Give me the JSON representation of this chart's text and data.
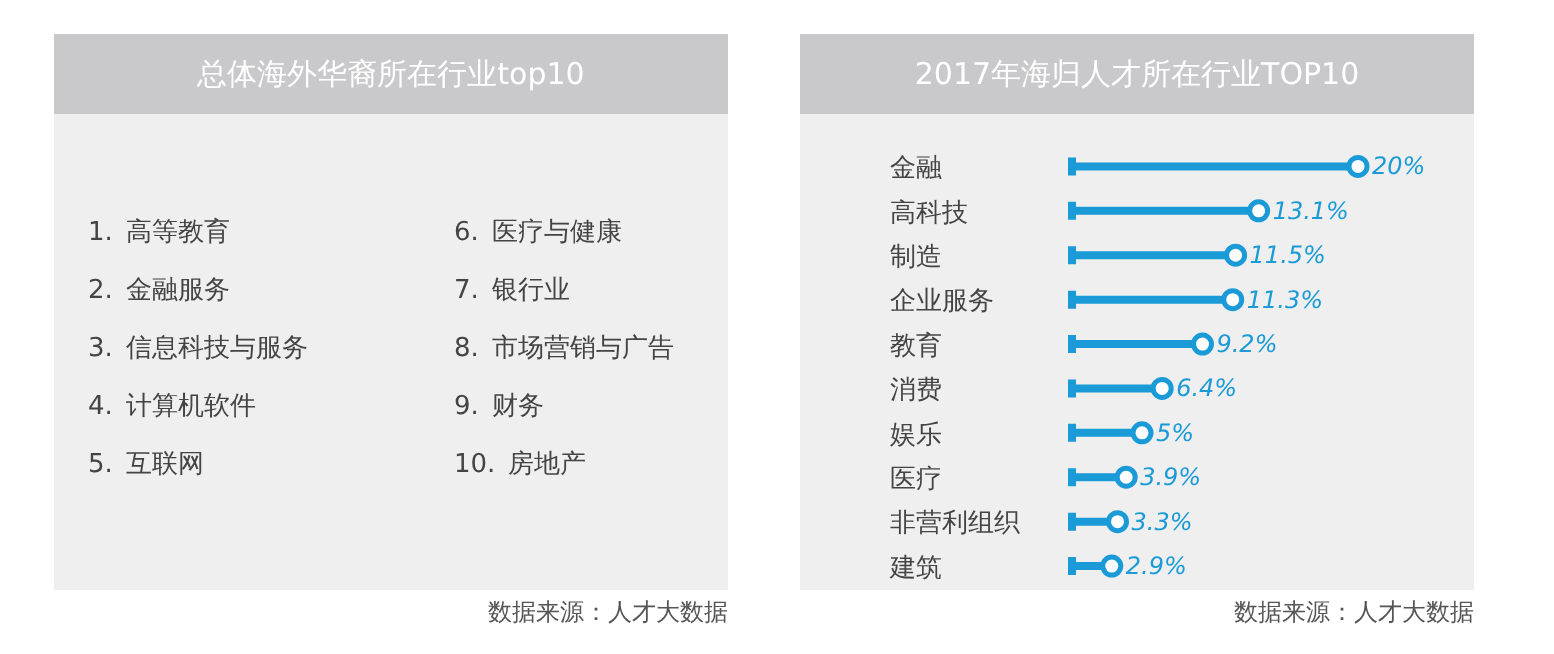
{
  "chart_data": [
    {
      "type": "other",
      "title": "总体海外华裔所在行业top10",
      "categories": [
        "1. 高等教育",
        "2. 金融服务",
        "3. 信息科技与服务",
        "4. 计算机软件",
        "5. 互联网",
        "6. 医疗与健康",
        "7. 银行业",
        "8. 市场营销与广告",
        "9. 财务",
        "10. 房地产"
      ],
      "annotations": [
        "数据来源：人才大数据"
      ]
    },
    {
      "type": "lollipop",
      "title": "2017年海归人才所在行业TOP10",
      "orientation": "horizontal",
      "color": "#1a9ad6",
      "categories": [
        "金融",
        "高科技",
        "制造",
        "企业服务",
        "教育",
        "消费",
        "娱乐",
        "医疗",
        "非营利组织",
        "建筑"
      ],
      "values": [
        20,
        13.1,
        11.5,
        11.3,
        9.2,
        6.4,
        5,
        3.9,
        3.3,
        2.9
      ],
      "value_labels": [
        "20%",
        "13.1%",
        "11.5%",
        "11.3%",
        "9.2%",
        "6.4%",
        "5%",
        "3.9%",
        "3.3%",
        "2.9%"
      ],
      "annotations": [
        "数据来源：人才大数据"
      ]
    }
  ]
}
